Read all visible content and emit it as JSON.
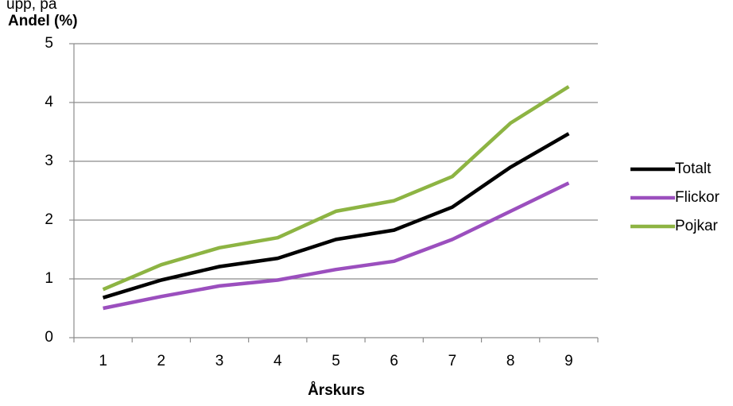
{
  "header": {
    "cut_text": "upp, på"
  },
  "chart_data": {
    "type": "line",
    "categories": [
      "1",
      "2",
      "3",
      "4",
      "5",
      "6",
      "7",
      "8",
      "9"
    ],
    "series": [
      {
        "name": "Totalt",
        "color": "#000000",
        "values": [
          0.68,
          0.98,
          1.21,
          1.35,
          1.67,
          1.83,
          2.22,
          2.9,
          3.47
        ]
      },
      {
        "name": "Flickor",
        "color": "#9B4FBE",
        "values": [
          0.5,
          0.7,
          0.88,
          0.98,
          1.16,
          1.3,
          1.67,
          2.15,
          2.63
        ]
      },
      {
        "name": "Pojkar",
        "color": "#8DB443",
        "values": [
          0.82,
          1.24,
          1.53,
          1.7,
          2.15,
          2.33,
          2.74,
          3.65,
          4.27
        ]
      }
    ],
    "xlabel": "Årskurs",
    "ylabel": "Andel (%)",
    "ylim": [
      0,
      5
    ],
    "yticks": [
      "0",
      "1",
      "2",
      "3",
      "4",
      "5"
    ],
    "grid": true,
    "legend": "right"
  }
}
